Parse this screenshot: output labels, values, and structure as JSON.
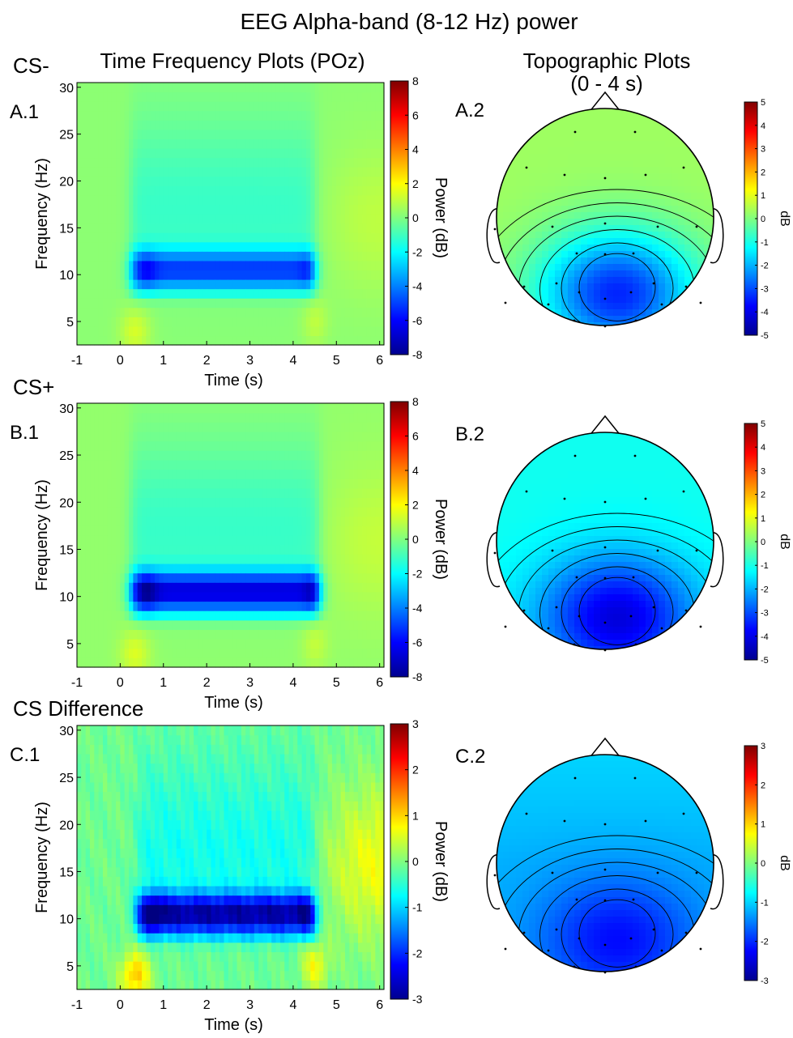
{
  "figure": {
    "title": "EEG Alpha-band (8-12 Hz) power",
    "col_headers": [
      "Time Frequency Plots (POz)",
      "Topographic Plots",
      "(0 - 4 s)"
    ]
  },
  "colors": {
    "colormap": "jet",
    "background": "#ffffff"
  },
  "chart_data": [
    {
      "type": "heatmap",
      "row_label": "CS-",
      "panel": "A.1",
      "xlabel": "Time (s)",
      "ylabel": "Frequency (Hz)",
      "xlim": [
        -1,
        6.1
      ],
      "ylim": [
        2.5,
        30.5
      ],
      "x_ticks": [
        "-1",
        "0",
        "1",
        "2",
        "3",
        "4",
        "5",
        "6"
      ],
      "y_ticks": [
        "5",
        "10",
        "15",
        "20",
        "25",
        "30"
      ],
      "colorbar": {
        "label": "Power (dB)",
        "range": [
          -8,
          8
        ],
        "ticks": [
          "8",
          "6",
          "4",
          "2",
          "0",
          "-2",
          "-4",
          "-6",
          "-8"
        ]
      },
      "baseline_db": 0.2,
      "alpha_min_db": -4.5,
      "broad_min_db": -2.2,
      "onset_s": 0.25,
      "offset_s": 4.5
    },
    {
      "type": "heatmap",
      "row_label": "CS+",
      "panel": "B.1",
      "xlabel": "Time (s)",
      "ylabel": "Frequency (Hz)",
      "xlim": [
        -1,
        6.1
      ],
      "ylim": [
        2.5,
        30.5
      ],
      "x_ticks": [
        "-1",
        "0",
        "1",
        "2",
        "3",
        "4",
        "5",
        "6"
      ],
      "y_ticks": [
        "5",
        "10",
        "15",
        "20",
        "25",
        "30"
      ],
      "colorbar": {
        "label": "Power (dB)",
        "range": [
          -8,
          8
        ],
        "ticks": [
          "8",
          "6",
          "4",
          "2",
          "0",
          "-2",
          "-4",
          "-6",
          "-8"
        ]
      },
      "baseline_db": 0.3,
      "alpha_min_db": -6.0,
      "broad_min_db": -2.4,
      "onset_s": 0.25,
      "offset_s": 4.6
    },
    {
      "type": "heatmap",
      "row_label": "CS Difference",
      "panel": "C.1",
      "xlabel": "Time (s)",
      "ylabel": "Frequency (Hz)",
      "xlim": [
        -1,
        6.1
      ],
      "ylim": [
        2.5,
        30.5
      ],
      "x_ticks": [
        "-1",
        "0",
        "1",
        "2",
        "3",
        "4",
        "5",
        "6"
      ],
      "y_ticks": [
        "5",
        "10",
        "15",
        "20",
        "25",
        "30"
      ],
      "colorbar": {
        "label": "Power (dB)",
        "range": [
          -3,
          3
        ],
        "ticks": [
          "3",
          "2",
          "1",
          "0",
          "-1",
          "-2",
          "-3"
        ]
      },
      "baseline_db": -0.1,
      "alpha_min_db": -2.4,
      "broad_min_db": -0.9,
      "onset_s": 0.4,
      "offset_s": 4.5
    },
    {
      "type": "heatmap",
      "panel": "A.2",
      "subtype": "scalp topography",
      "colorbar": {
        "label": "dB",
        "range": [
          -5,
          5
        ],
        "ticks": [
          "5",
          "4",
          "3",
          "2",
          "1",
          "0",
          "-1",
          "-2",
          "-3",
          "-4",
          "-5"
        ]
      },
      "frontal_db": 0.3,
      "posterior_min_db": -3.4
    },
    {
      "type": "heatmap",
      "panel": "B.2",
      "subtype": "scalp topography",
      "colorbar": {
        "label": "dB",
        "range": [
          -5,
          5
        ],
        "ticks": [
          "5",
          "4",
          "3",
          "2",
          "1",
          "0",
          "-1",
          "-2",
          "-3",
          "-4",
          "-5"
        ]
      },
      "frontal_db": -1.1,
      "posterior_min_db": -4.1
    },
    {
      "type": "heatmap",
      "panel": "C.2",
      "subtype": "scalp topography",
      "colorbar": {
        "label": "dB",
        "range": [
          -3,
          3
        ],
        "ticks": [
          "3",
          "2",
          "1",
          "0",
          "-1",
          "-2",
          "-3"
        ]
      },
      "frontal_db": -1.2,
      "posterior_min_db": -2.2
    }
  ]
}
